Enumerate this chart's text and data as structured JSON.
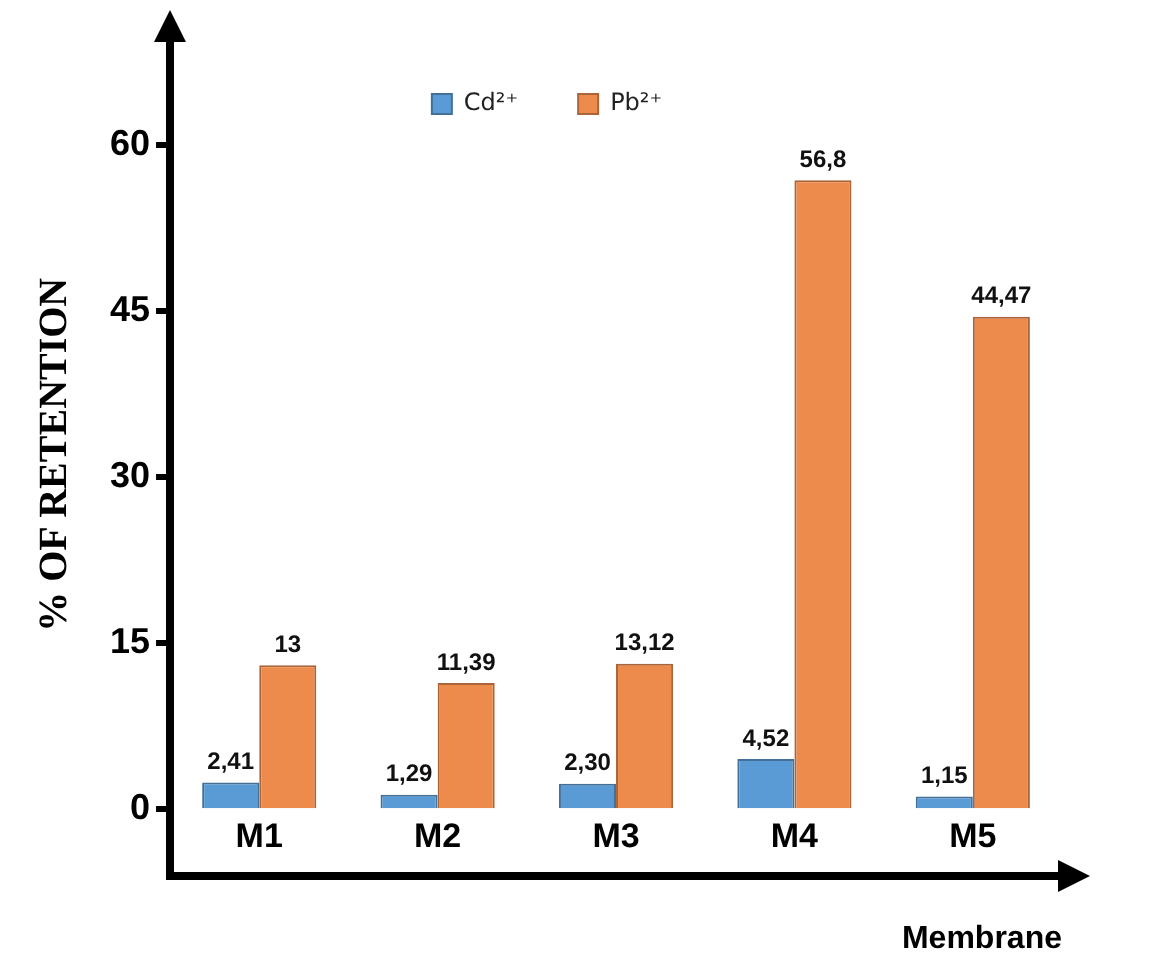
{
  "chart_data": {
    "type": "bar",
    "categories": [
      "M1",
      "M2",
      "M3",
      "M4",
      "M5"
    ],
    "series": [
      {
        "name": "Cd²⁺",
        "color": "#5b9bd5",
        "values": [
          2.41,
          1.29,
          2.3,
          4.52,
          1.15
        ],
        "value_labels": [
          "2,41",
          "1,29",
          "2,30",
          "4,52",
          "1,15"
        ]
      },
      {
        "name": "Pb²⁺",
        "color": "#ed8b4d",
        "values": [
          13,
          11.39,
          13.12,
          56.8,
          44.47
        ],
        "value_labels": [
          "13",
          "11,39",
          "13,12",
          "56,8",
          "44,47"
        ]
      }
    ],
    "xlabel": "Membrane",
    "ylabel": "% OF RETENTION",
    "ylim": [
      -6,
      70
    ],
    "yticks": [
      0,
      15,
      30,
      45,
      60
    ],
    "grid": false,
    "legend": "top"
  }
}
